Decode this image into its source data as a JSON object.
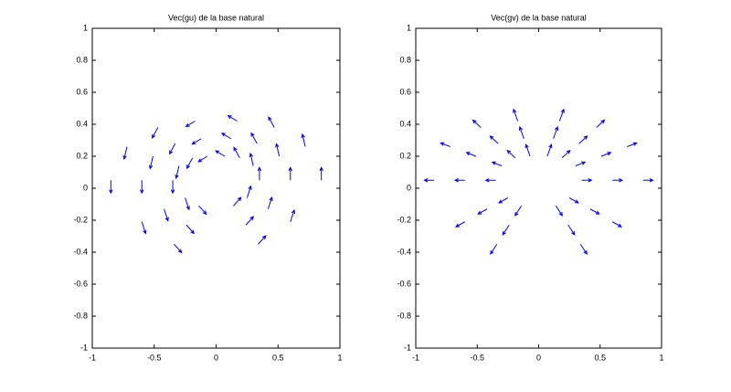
{
  "chart_data": [
    {
      "type": "quiver",
      "title": "Vec(gu) de la base natural",
      "color": "#0000ff",
      "xlim": [
        -1,
        1
      ],
      "ylim": [
        -1,
        1
      ],
      "xticks": [
        -1,
        -0.5,
        0,
        0.5,
        1
      ],
      "yticks": [
        -1,
        -0.8,
        -0.6,
        -0.4,
        -0.2,
        0,
        0.2,
        0.4,
        0.6,
        0.8,
        1
      ],
      "x": [
        -0.35,
        -0.6,
        -0.85,
        -0.3,
        -0.51,
        -0.72,
        -0.19,
        -0.33,
        -0.47,
        -0.07,
        -0.12,
        -0.17,
        0.07,
        0.12,
        0.17,
        0.19,
        0.33,
        0.47,
        0.3,
        0.51,
        0.72,
        0.35,
        0.6,
        0.85,
        -0.25,
        -0.42,
        -0.6,
        0.25,
        0.42,
        0.6,
        -0.14,
        -0.24,
        -0.34,
        0.14,
        0.24,
        0.34
      ],
      "y": [
        0.05,
        0.05,
        0.05,
        0.14,
        0.2,
        0.26,
        0.19,
        0.28,
        0.38,
        0.2,
        0.31,
        0.42,
        0.2,
        0.31,
        0.42,
        0.19,
        0.28,
        0.38,
        0.14,
        0.2,
        0.26,
        0.05,
        0.05,
        0.05,
        -0.06,
        -0.13,
        -0.21,
        -0.06,
        -0.13,
        -0.21,
        -0.11,
        -0.23,
        -0.35,
        -0.11,
        -0.23,
        -0.35
      ],
      "u": [
        0,
        0,
        0,
        -0.023,
        -0.023,
        -0.023,
        -0.046,
        -0.046,
        -0.046,
        -0.073,
        -0.073,
        -0.073,
        -0.073,
        -0.073,
        -0.073,
        -0.046,
        -0.046,
        -0.046,
        -0.023,
        -0.023,
        -0.023,
        0,
        0,
        0,
        0.031,
        0.031,
        0.031,
        0.031,
        0.031,
        0.031,
        0.061,
        0.061,
        0.061,
        0.061,
        0.061,
        0.061
      ],
      "v": [
        -0.08,
        -0.08,
        -0.08,
        -0.077,
        -0.077,
        -0.077,
        -0.065,
        -0.065,
        -0.065,
        -0.034,
        -0.034,
        -0.034,
        0.034,
        0.034,
        0.034,
        0.065,
        0.065,
        0.065,
        0.077,
        0.077,
        0.077,
        0.08,
        0.08,
        0.08,
        -0.073,
        -0.073,
        -0.073,
        0.073,
        0.073,
        0.073,
        -0.052,
        -0.052,
        -0.052,
        0.052,
        0.052,
        0.052
      ]
    },
    {
      "type": "quiver",
      "title": "Vec(gv) de la base natural",
      "color": "#0000ff",
      "xlim": [
        -1,
        1
      ],
      "ylim": [
        -1,
        1
      ],
      "xticks": [
        -1,
        -0.5,
        0,
        0.5,
        1
      ],
      "yticks": [
        -1,
        -0.8,
        -0.6,
        -0.4,
        -0.2,
        0,
        0.2,
        0.4,
        0.6,
        0.8,
        1
      ],
      "x": [
        -0.35,
        -0.6,
        -0.85,
        -0.3,
        -0.51,
        -0.72,
        -0.19,
        -0.33,
        -0.47,
        -0.07,
        -0.12,
        -0.17,
        0.07,
        0.12,
        0.17,
        0.19,
        0.33,
        0.47,
        0.3,
        0.51,
        0.72,
        0.35,
        0.6,
        0.85,
        -0.25,
        -0.42,
        -0.6,
        0.25,
        0.42,
        0.6,
        -0.14,
        -0.24,
        -0.34,
        0.14,
        0.24,
        0.34
      ],
      "y": [
        0.05,
        0.05,
        0.05,
        0.14,
        0.2,
        0.26,
        0.19,
        0.28,
        0.38,
        0.2,
        0.31,
        0.42,
        0.2,
        0.31,
        0.42,
        0.19,
        0.28,
        0.38,
        0.14,
        0.2,
        0.26,
        0.05,
        0.05,
        0.05,
        -0.06,
        -0.13,
        -0.21,
        -0.06,
        -0.13,
        -0.21,
        -0.11,
        -0.23,
        -0.35,
        -0.11,
        -0.23,
        -0.35
      ],
      "u": [
        -0.08,
        -0.08,
        -0.08,
        -0.077,
        -0.077,
        -0.077,
        -0.065,
        -0.065,
        -0.065,
        -0.034,
        -0.034,
        -0.034,
        0.034,
        0.034,
        0.034,
        0.065,
        0.065,
        0.065,
        0.077,
        0.077,
        0.077,
        0.08,
        0.08,
        0.08,
        -0.073,
        -0.073,
        -0.073,
        0.073,
        0.073,
        0.073,
        -0.052,
        -0.052,
        -0.052,
        0.052,
        0.052,
        0.052
      ],
      "v": [
        0,
        0,
        0,
        0.023,
        0.023,
        0.023,
        0.046,
        0.046,
        0.046,
        0.073,
        0.073,
        0.073,
        0.073,
        0.073,
        0.073,
        0.046,
        0.046,
        0.046,
        0.023,
        0.023,
        0.023,
        0,
        0,
        0,
        -0.031,
        -0.031,
        -0.031,
        -0.031,
        -0.031,
        -0.031,
        -0.061,
        -0.061,
        -0.061,
        -0.061,
        -0.061,
        -0.061
      ]
    }
  ]
}
